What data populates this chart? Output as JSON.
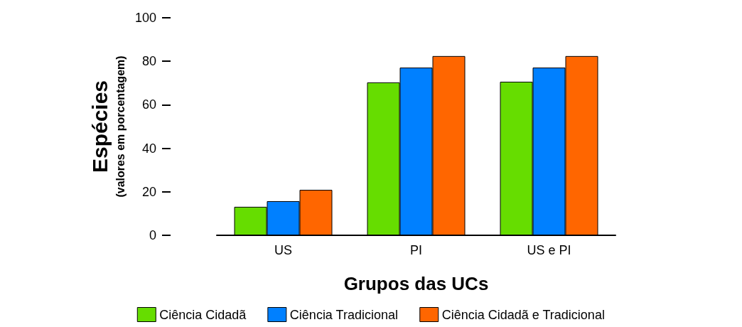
{
  "chart_data": {
    "type": "bar",
    "xlabel": "Grupos das UCs",
    "ylabel": "Espécies\n(valores em porcentagem)",
    "categories": [
      "US",
      "PI",
      "US e PI"
    ],
    "series": [
      {
        "name": "Ciência Cidadã",
        "color": "#66dd00",
        "values": [
          13.1,
          70.3,
          70.6
        ]
      },
      {
        "name": "Ciência Tradicional",
        "color": "#0080ff",
        "values": [
          15.7,
          77.1,
          77.1
        ]
      },
      {
        "name": "Ciência Cidadã e Tradicional",
        "color": "#ff6600",
        "values": [
          20.9,
          82.4,
          82.4
        ]
      }
    ],
    "ylim": [
      0,
      100
    ],
    "yticks": [
      0,
      20,
      40,
      60,
      80,
      100
    ],
    "grid": false,
    "legend": "bottom"
  }
}
